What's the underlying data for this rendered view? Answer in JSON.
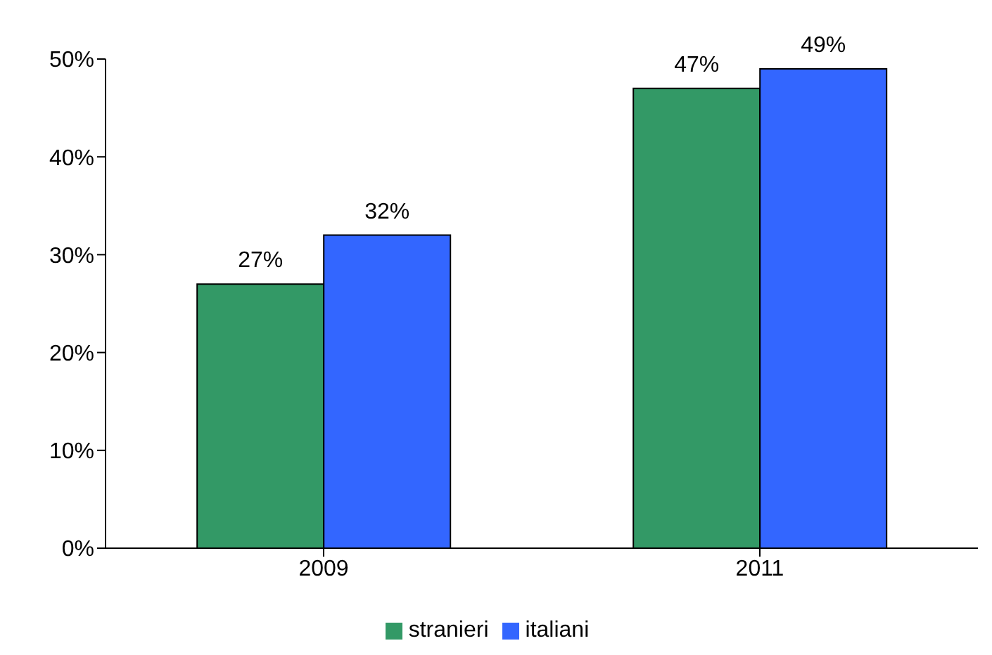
{
  "chart_data": {
    "type": "bar",
    "categories": [
      "2009",
      "2011"
    ],
    "series": [
      {
        "name": "stranieri",
        "color": "#339966",
        "values": [
          27,
          47
        ],
        "value_labels": [
          "27%",
          "47%"
        ]
      },
      {
        "name": "italiani",
        "color": "#3366ff",
        "values": [
          32,
          49
        ],
        "value_labels": [
          "32%",
          "49%"
        ]
      }
    ],
    "ylim": [
      0,
      50
    ],
    "yticks": [
      {
        "value": 0,
        "label": "0%"
      },
      {
        "value": 10,
        "label": "10%"
      },
      {
        "value": 20,
        "label": "20%"
      },
      {
        "value": 30,
        "label": "30%"
      },
      {
        "value": 40,
        "label": "40%"
      },
      {
        "value": 50,
        "label": "50%"
      }
    ],
    "grid": false,
    "legend": "bottom"
  }
}
